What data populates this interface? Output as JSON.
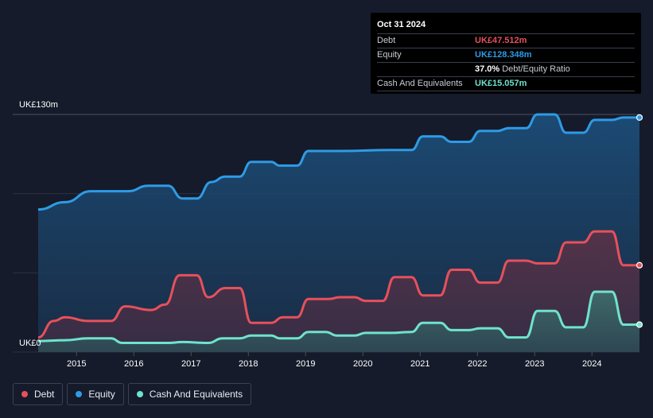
{
  "tooltip": {
    "date": "Oct 31 2024",
    "rows": [
      {
        "label": "Debt",
        "value": "UK£47.512m",
        "color": "#e8505b"
      },
      {
        "label": "Equity",
        "value": "UK£128.348m",
        "color": "#2e9be6"
      },
      {
        "label": "",
        "value": "37.0%",
        "sub": "Debt/Equity Ratio",
        "color": "#ffffff"
      },
      {
        "label": "Cash And Equivalents",
        "value": "UK£15.057m",
        "color": "#6fe3cc"
      }
    ]
  },
  "legend": [
    {
      "label": "Debt",
      "color": "#e8505b"
    },
    {
      "label": "Equity",
      "color": "#2e9be6"
    },
    {
      "label": "Cash And Equivalents",
      "color": "#6fe3cc"
    }
  ],
  "chart_data": {
    "type": "area",
    "y_top_label": "UK£130m",
    "y_bottom_label": "UK£0",
    "ylim": [
      0,
      130
    ],
    "xlim": [
      2014.3,
      2024.83
    ],
    "x_ticks": [
      "2015",
      "2016",
      "2017",
      "2018",
      "2019",
      "2020",
      "2021",
      "2022",
      "2023",
      "2024"
    ],
    "grid": true,
    "series": [
      {
        "name": "Equity",
        "color": "#2e9be6",
        "points": [
          [
            2014.33,
            78
          ],
          [
            2014.8,
            82
          ],
          [
            2015.25,
            88
          ],
          [
            2015.9,
            88
          ],
          [
            2016.25,
            91
          ],
          [
            2016.6,
            91
          ],
          [
            2016.85,
            84
          ],
          [
            2017.1,
            84
          ],
          [
            2017.35,
            93
          ],
          [
            2017.6,
            96
          ],
          [
            2017.85,
            96
          ],
          [
            2018.05,
            104
          ],
          [
            2018.4,
            104
          ],
          [
            2018.55,
            102
          ],
          [
            2018.85,
            102
          ],
          [
            2019.05,
            110
          ],
          [
            2019.6,
            110
          ],
          [
            2020.5,
            110.5
          ],
          [
            2020.85,
            110.5
          ],
          [
            2021.05,
            118
          ],
          [
            2021.35,
            118
          ],
          [
            2021.55,
            115
          ],
          [
            2021.85,
            115
          ],
          [
            2022.05,
            121
          ],
          [
            2022.35,
            121
          ],
          [
            2022.55,
            122.5
          ],
          [
            2022.85,
            122.5
          ],
          [
            2023.05,
            130
          ],
          [
            2023.35,
            130
          ],
          [
            2023.55,
            120
          ],
          [
            2023.85,
            120
          ],
          [
            2024.05,
            127
          ],
          [
            2024.35,
            127
          ],
          [
            2024.55,
            128.3
          ],
          [
            2024.83,
            128.3
          ]
        ]
      },
      {
        "name": "Debt",
        "color": "#e8505b",
        "points": [
          [
            2014.33,
            8
          ],
          [
            2014.6,
            17
          ],
          [
            2014.8,
            19
          ],
          [
            2015.2,
            17
          ],
          [
            2015.6,
            17
          ],
          [
            2015.85,
            25
          ],
          [
            2016.3,
            23
          ],
          [
            2016.55,
            26
          ],
          [
            2016.8,
            42
          ],
          [
            2017.1,
            42
          ],
          [
            2017.3,
            30
          ],
          [
            2017.6,
            35
          ],
          [
            2017.85,
            35
          ],
          [
            2018.05,
            16
          ],
          [
            2018.4,
            16
          ],
          [
            2018.6,
            19
          ],
          [
            2018.85,
            19
          ],
          [
            2019.05,
            29
          ],
          [
            2019.4,
            29
          ],
          [
            2019.6,
            30
          ],
          [
            2019.85,
            30
          ],
          [
            2020.05,
            28
          ],
          [
            2020.35,
            28
          ],
          [
            2020.55,
            41
          ],
          [
            2020.85,
            41
          ],
          [
            2021.05,
            31
          ],
          [
            2021.35,
            31
          ],
          [
            2021.55,
            45
          ],
          [
            2021.85,
            45
          ],
          [
            2022.05,
            38
          ],
          [
            2022.35,
            38
          ],
          [
            2022.55,
            50
          ],
          [
            2022.85,
            50
          ],
          [
            2023.05,
            48.5
          ],
          [
            2023.35,
            48.5
          ],
          [
            2023.55,
            60
          ],
          [
            2023.85,
            60
          ],
          [
            2024.05,
            66
          ],
          [
            2024.35,
            66
          ],
          [
            2024.55,
            47.5
          ],
          [
            2024.83,
            47.5
          ]
        ]
      },
      {
        "name": "Cash And Equivalents",
        "color": "#6fe3cc",
        "points": [
          [
            2014.33,
            6
          ],
          [
            2014.8,
            6.5
          ],
          [
            2015.2,
            7.5
          ],
          [
            2015.6,
            7.5
          ],
          [
            2015.8,
            5
          ],
          [
            2016.6,
            5
          ],
          [
            2016.85,
            5.5
          ],
          [
            2017.3,
            5
          ],
          [
            2017.55,
            7.5
          ],
          [
            2017.85,
            7.5
          ],
          [
            2018.05,
            9
          ],
          [
            2018.4,
            9
          ],
          [
            2018.55,
            7.5
          ],
          [
            2018.85,
            7.5
          ],
          [
            2019.05,
            11
          ],
          [
            2019.35,
            11
          ],
          [
            2019.55,
            9
          ],
          [
            2019.85,
            9
          ],
          [
            2020.05,
            10.5
          ],
          [
            2020.5,
            10.5
          ],
          [
            2020.85,
            11
          ],
          [
            2021.05,
            16
          ],
          [
            2021.35,
            16
          ],
          [
            2021.55,
            12
          ],
          [
            2021.85,
            12
          ],
          [
            2022.05,
            13
          ],
          [
            2022.35,
            13
          ],
          [
            2022.55,
            8
          ],
          [
            2022.85,
            8
          ],
          [
            2023.05,
            22.5
          ],
          [
            2023.35,
            22.5
          ],
          [
            2023.55,
            13.5
          ],
          [
            2023.85,
            13.5
          ],
          [
            2024.05,
            33
          ],
          [
            2024.35,
            33
          ],
          [
            2024.55,
            15
          ],
          [
            2024.83,
            15
          ]
        ]
      }
    ]
  }
}
